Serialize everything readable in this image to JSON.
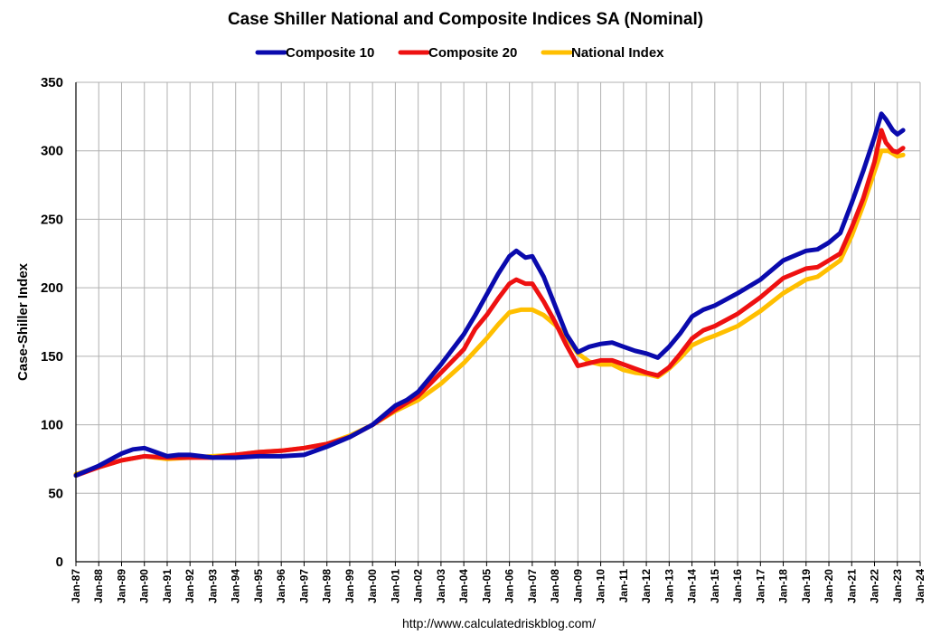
{
  "chart_data": {
    "type": "line",
    "title": "Case Shiller National and Composite Indices SA (Nominal)",
    "xlabel": "",
    "ylabel": "Case-Shiller Index",
    "source": "http://www.calculatedriskblog.com/",
    "ylim": [
      0,
      350
    ],
    "yticks": [
      0,
      50,
      100,
      150,
      200,
      250,
      300,
      350
    ],
    "xlim": [
      1987,
      2024
    ],
    "xticks": [
      "Jan-87",
      "Jan-88",
      "Jan-89",
      "Jan-90",
      "Jan-91",
      "Jan-92",
      "Jan-93",
      "Jan-94",
      "Jan-95",
      "Jan-96",
      "Jan-97",
      "Jan-98",
      "Jan-99",
      "Jan-00",
      "Jan-01",
      "Jan-02",
      "Jan-03",
      "Jan-04",
      "Jan-05",
      "Jan-06",
      "Jan-07",
      "Jan-08",
      "Jan-09",
      "Jan-10",
      "Jan-11",
      "Jan-12",
      "Jan-13",
      "Jan-14",
      "Jan-15",
      "Jan-16",
      "Jan-17",
      "Jan-18",
      "Jan-19",
      "Jan-20",
      "Jan-21",
      "Jan-22",
      "Jan-23",
      "Jan-24"
    ],
    "grid": true,
    "legend_position": "top-center",
    "series": [
      {
        "name": "Composite 10",
        "color": "#0a0aad",
        "x": [
          1987,
          1988,
          1989,
          1989.5,
          1990,
          1990.5,
          1991,
          1991.5,
          1992,
          1993,
          1994,
          1995,
          1996,
          1997,
          1998,
          1999,
          2000,
          2001,
          2001.5,
          2002,
          2003,
          2004,
          2004.5,
          2005,
          2005.5,
          2006,
          2006.3,
          2006.7,
          2007,
          2007.5,
          2008,
          2008.5,
          2009,
          2009.5,
          2010,
          2010.5,
          2011,
          2011.5,
          2012,
          2012.5,
          2013,
          2013.5,
          2014,
          2014.5,
          2015,
          2016,
          2017,
          2018,
          2019,
          2019.5,
          2020,
          2020.5,
          2021,
          2021.5,
          2022,
          2022.3,
          2022.5,
          2022.8,
          2023,
          2023.25
        ],
        "values": [
          63,
          70,
          79,
          82,
          83,
          80,
          77,
          78,
          78,
          76,
          76,
          77,
          77,
          78,
          84,
          91,
          100,
          114,
          118,
          124,
          144,
          166,
          180,
          195,
          210,
          223,
          227,
          222,
          223,
          208,
          187,
          166,
          153,
          157,
          159,
          160,
          157,
          154,
          152,
          149,
          157,
          167,
          179,
          184,
          187,
          196,
          206,
          220,
          227,
          228,
          233,
          240,
          262,
          285,
          310,
          327,
          323,
          315,
          312,
          315
        ]
      },
      {
        "name": "Composite 20",
        "color": "#ee1111",
        "x": [
          1987,
          1988,
          1989,
          1990,
          1991,
          1992,
          1993,
          1994,
          1995,
          1996,
          1997,
          1998,
          1999,
          2000,
          2001,
          2002,
          2003,
          2004,
          2004.5,
          2005,
          2005.5,
          2006,
          2006.3,
          2006.7,
          2007,
          2007.5,
          2008,
          2008.5,
          2009,
          2009.5,
          2010,
          2010.5,
          2011,
          2011.5,
          2012,
          2012.5,
          2013,
          2013.5,
          2014,
          2014.5,
          2015,
          2016,
          2017,
          2018,
          2019,
          2019.5,
          2020,
          2020.5,
          2021,
          2021.5,
          2022,
          2022.3,
          2022.5,
          2022.8,
          2023,
          2023.25
        ],
        "values": [
          63,
          69,
          74,
          77,
          76,
          76,
          76,
          78,
          80,
          81,
          83,
          86,
          91,
          100,
          111,
          121,
          138,
          155,
          170,
          180,
          192,
          203,
          206,
          203,
          203,
          190,
          175,
          158,
          143,
          145,
          147,
          147,
          144,
          141,
          138,
          136,
          142,
          152,
          163,
          169,
          172,
          181,
          193,
          207,
          214,
          215,
          220,
          225,
          244,
          265,
          292,
          315,
          306,
          300,
          299,
          302
        ]
      },
      {
        "name": "National Index",
        "color": "#ffbf00",
        "x": [
          1987,
          1988,
          1989,
          1990,
          1991,
          1992,
          1993,
          1994,
          1995,
          1996,
          1997,
          1998,
          1999,
          2000,
          2001,
          2002,
          2003,
          2004,
          2005,
          2005.5,
          2006,
          2006.5,
          2007,
          2007.5,
          2008,
          2008.5,
          2009,
          2009.5,
          2010,
          2010.5,
          2011,
          2011.5,
          2012,
          2012.5,
          2013,
          2013.5,
          2014,
          2014.5,
          2015,
          2016,
          2017,
          2018,
          2019,
          2019.5,
          2020,
          2020.5,
          2021,
          2021.5,
          2022,
          2022.3,
          2022.6,
          2023,
          2023.25
        ],
        "values": [
          64,
          69,
          74,
          77,
          75,
          76,
          77,
          78,
          80,
          81,
          83,
          86,
          92,
          100,
          110,
          118,
          130,
          145,
          163,
          173,
          182,
          184,
          184,
          180,
          173,
          164,
          152,
          146,
          144,
          144,
          140,
          138,
          137,
          135,
          141,
          149,
          158,
          162,
          165,
          172,
          183,
          196,
          206,
          208,
          214,
          220,
          238,
          260,
          285,
          300,
          300,
          296,
          297
        ]
      }
    ]
  }
}
